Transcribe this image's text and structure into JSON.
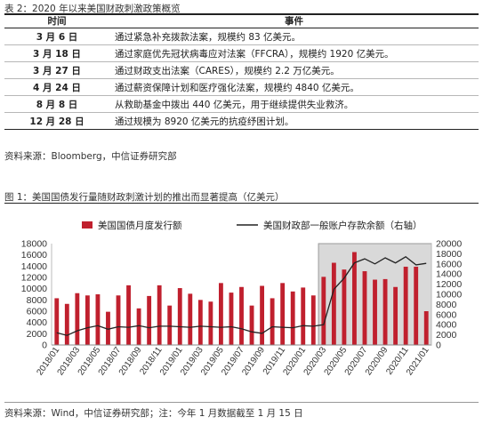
{
  "table": {
    "caption": "表 2：2020 年以来美国财政刺激政策概览",
    "headers": [
      "时间",
      "事件"
    ],
    "rows": [
      {
        "date": "3 月 6 日",
        "event": "通过紧急补充拨款法案，规模约 83 亿美元。"
      },
      {
        "date": "3 月 18 日",
        "event": "通过家庭优先冠状病毒应对法案（FFCRA），规模约 1920 亿美元。"
      },
      {
        "date": "3 月 27 日",
        "event": "通过财政支出法案（CARES），规模约 2.2 万亿美元。"
      },
      {
        "date": "4 月 24 日",
        "event": "通过薪资保障计划和医疗强化法案，规模约 4840 亿美元。"
      },
      {
        "date": "8 月 8 日",
        "event": "从救助基金中拨出 440 亿美元，用于继续提供失业救济。"
      },
      {
        "date": "12 月 28 日",
        "event": "通过规模为 8920 亿美元的抗疫纾困计划。"
      }
    ],
    "source": "资料来源：Bloomberg，中信证券研究部"
  },
  "figure": {
    "caption": "图 1：美国国债发行量随财政刺激计划的推出而显著提高（亿美元）",
    "source": "资料来源：Wind，中信证券研究部；注：今年 1 月数据截至 1 月 15 日"
  },
  "chart_data": {
    "type": "bar",
    "highlight_period": [
      "2020/03",
      "2021/01"
    ],
    "categories": [
      "2018/01",
      "2018/02",
      "2018/03",
      "2018/04",
      "2018/05",
      "2018/06",
      "2018/07",
      "2018/08",
      "2018/09",
      "2018/10",
      "2018/11",
      "2018/12",
      "2019/01",
      "2019/02",
      "2019/03",
      "2019/04",
      "2019/05",
      "2019/06",
      "2019/07",
      "2019/08",
      "2019/09",
      "2019/10",
      "2019/11",
      "2019/12",
      "2020/01",
      "2020/02",
      "2020/03",
      "2020/04",
      "2020/05",
      "2020/06",
      "2020/07",
      "2020/08",
      "2020/09",
      "2020/10",
      "2020/11",
      "2020/12",
      "2021/01"
    ],
    "tick_labels": [
      "2018/01",
      "2018/03",
      "2018/05",
      "2018/07",
      "2018/09",
      "2018/11",
      "2019/01",
      "2019/03",
      "2019/05",
      "2019/07",
      "2019/09",
      "2019/11",
      "2020/01",
      "2020/03",
      "2020/05",
      "2020/07",
      "2020/09",
      "2020/11",
      "2021/01"
    ],
    "series": [
      {
        "name": "美国国债月度发行额",
        "axis": "left",
        "color": "#c0202e",
        "values": [
          8300,
          7300,
          9200,
          8800,
          9000,
          5900,
          8800,
          10600,
          6500,
          8700,
          10600,
          7000,
          10100,
          9100,
          8000,
          7700,
          11000,
          9300,
          10300,
          7000,
          10500,
          8300,
          11000,
          9500,
          10200,
          8800,
          12100,
          14600,
          13400,
          16500,
          13100,
          11600,
          11700,
          10300,
          13900,
          13900,
          6000
        ]
      },
      {
        "name": "美国财政部一般账户存款余额（右轴）",
        "axis": "right",
        "color": "#222222",
        "values": [
          2400,
          1900,
          2800,
          3400,
          3800,
          3100,
          3600,
          3500,
          3800,
          3400,
          3700,
          3700,
          3600,
          3500,
          3700,
          3600,
          3500,
          3600,
          3200,
          2600,
          2300,
          3600,
          3500,
          3400,
          3800,
          3700,
          4000,
          11000,
          13200,
          16200,
          17000,
          16000,
          17200,
          16200,
          17400,
          15800,
          16100
        ]
      }
    ],
    "y_left": {
      "min": 0,
      "max": 18000,
      "ticks": [
        0,
        2000,
        4000,
        6000,
        8000,
        10000,
        12000,
        14000,
        16000,
        18000
      ]
    },
    "y_right": {
      "min": 0,
      "max": 20000,
      "ticks": [
        0,
        2000,
        4000,
        6000,
        8000,
        10000,
        12000,
        14000,
        16000,
        18000,
        20000
      ]
    },
    "legend_position": "top",
    "grid": false
  }
}
